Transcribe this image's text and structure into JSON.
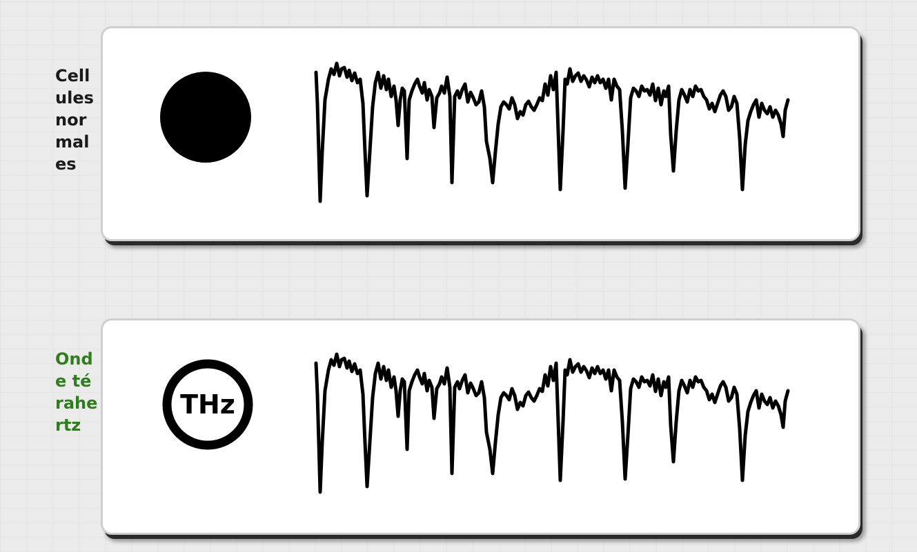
{
  "rows": [
    {
      "label": "Cellules normales",
      "label_color": "#1a1a1a",
      "icon": "filled-circle-icon",
      "icon_text": ""
    },
    {
      "label": "Onde térahertz",
      "label_color": "#2f7d1e",
      "icon": "thz-circle-icon",
      "icon_text": "THz"
    }
  ],
  "colors": {
    "background": "#ebebeb",
    "panel": "#ffffff",
    "trace": "#000000"
  }
}
